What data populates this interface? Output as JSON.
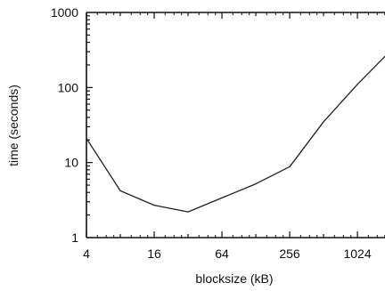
{
  "chart_data": {
    "type": "line",
    "xlabel": "blocksize (kB)",
    "ylabel": "time (seconds)",
    "x_scale": "log2",
    "y_scale": "log10",
    "xlim": [
      4,
      1800
    ],
    "ylim": [
      1,
      1000
    ],
    "x_ticks": [
      4,
      16,
      64,
      256,
      1024
    ],
    "x_tick_labels": [
      "4",
      "16",
      "64",
      "256",
      "1024"
    ],
    "y_ticks": [
      1,
      10,
      100,
      1000
    ],
    "y_tick_labels": [
      "1",
      "10",
      "100",
      "1000"
    ],
    "grid": false,
    "series": [
      {
        "x": [
          4,
          8,
          16,
          32,
          128,
          256,
          512,
          1024,
          1800
        ],
        "y": [
          21,
          4.2,
          2.7,
          2.2,
          5.2,
          8.8,
          35,
          110,
          260
        ]
      }
    ],
    "colors": {
      "line": "#222222",
      "axis": "#111111"
    }
  }
}
